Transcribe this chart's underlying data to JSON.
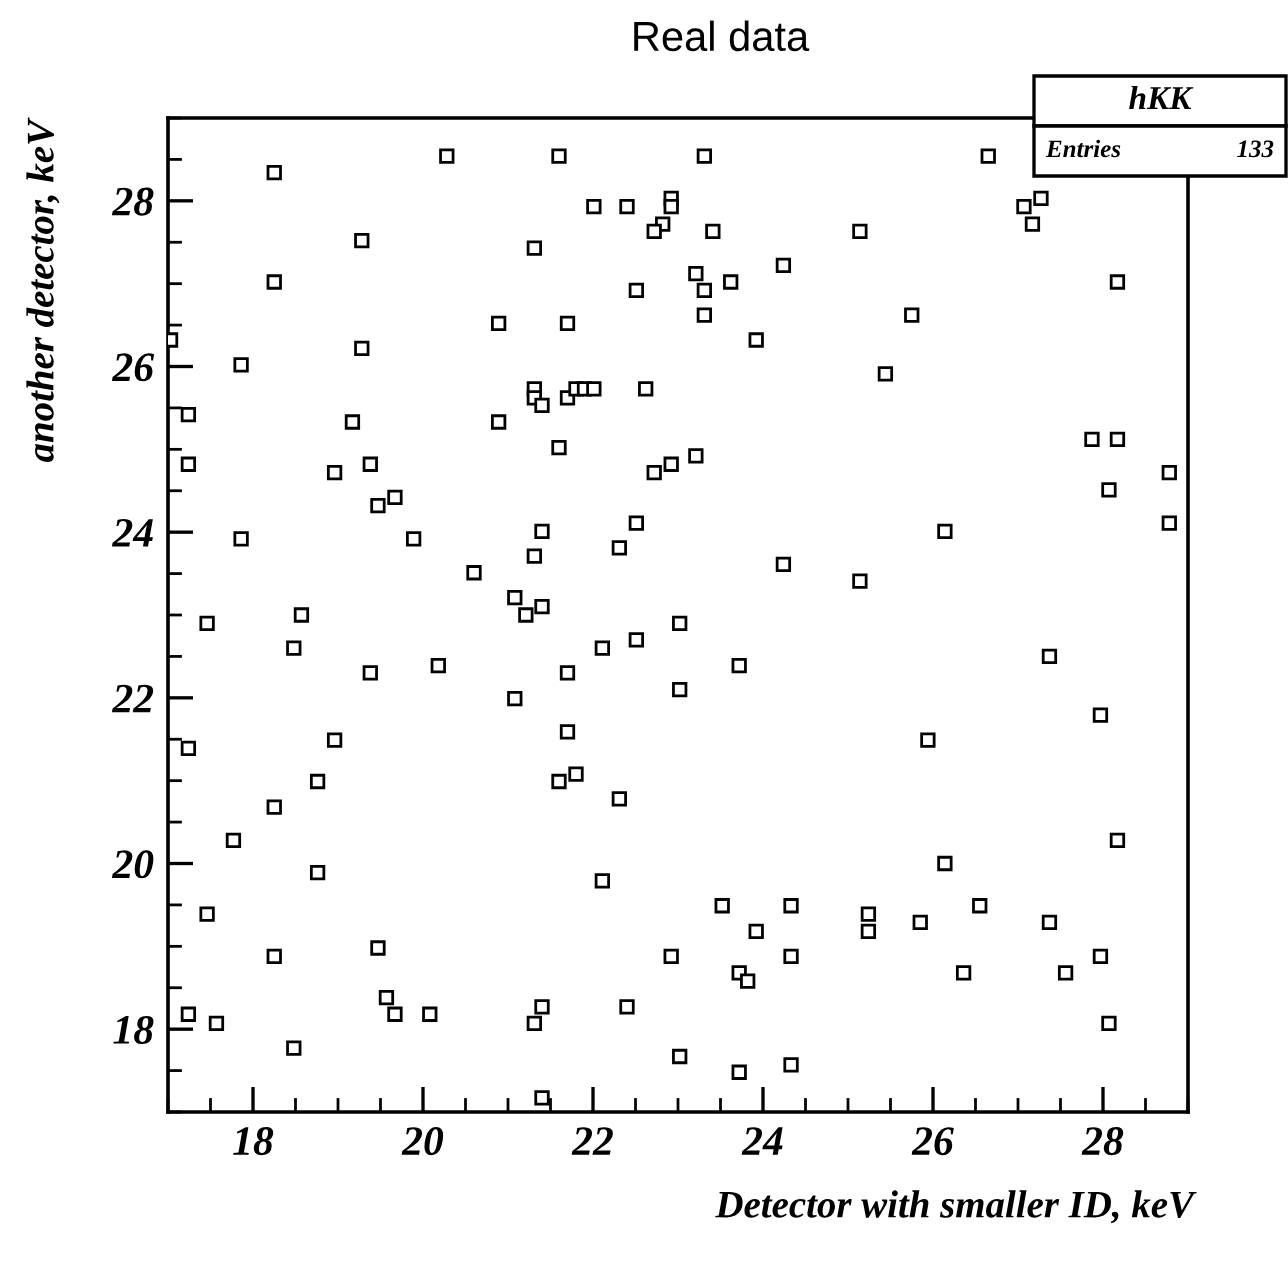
{
  "chart_data": {
    "type": "scatter",
    "title": "Real data",
    "xlabel": "Detector with smaller ID, keV",
    "ylabel": "another detector, keV",
    "annotations": [
      "hKK",
      "Entries",
      "133"
    ],
    "xlim": [
      17,
      29
    ],
    "ylim": [
      17,
      29
    ],
    "xticks": [
      18,
      20,
      22,
      24,
      26,
      28
    ],
    "yticks": [
      18,
      20,
      22,
      24,
      26,
      28
    ],
    "marker": "square",
    "grid": false,
    "legend": false,
    "series": [
      {
        "color": "#000000",
        "x": [
          18.25,
          20.28,
          19.28,
          18.25,
          20.89,
          17.03,
          19.28,
          17.86,
          17.24,
          19.17,
          20.89,
          17.24,
          19.38,
          18.96,
          19.67,
          19.47,
          17.86,
          19.89,
          20.6,
          21.08,
          17.46,
          18.57,
          18.48,
          19.38,
          20.18,
          21.08,
          17.24,
          18.96,
          18.76,
          18.25,
          17.77,
          18.76,
          17.46,
          18.25,
          19.47,
          19.57,
          17.24,
          17.57,
          19.67,
          20.08,
          18.48,
          21.6,
          23.31,
          22.01,
          22.4,
          22.92,
          22.92,
          22.82,
          22.72,
          23.41,
          25.14,
          21.31,
          23.21,
          24.24,
          23.62,
          22.51,
          23.31,
          23.31,
          21.7,
          23.92,
          25.44,
          21.31,
          21.31,
          21.4,
          21.7,
          21.8,
          21.9,
          22.01,
          22.62,
          21.6,
          22.72,
          22.92,
          23.21,
          21.4,
          22.51,
          21.31,
          22.31,
          24.24,
          25.14,
          21.21,
          21.4,
          23.02,
          22.11,
          22.51,
          21.7,
          23.02,
          23.72,
          21.7,
          21.6,
          21.8,
          22.31,
          22.11,
          23.52,
          24.33,
          25.24,
          25.24,
          23.92,
          22.92,
          24.33,
          23.72,
          23.82,
          21.4,
          21.31,
          22.4,
          23.02,
          23.72,
          24.33,
          21.4,
          26.65,
          27.07,
          27.27,
          27.17,
          28.17,
          25.75,
          27.87,
          28.17,
          28.78,
          28.07,
          28.78,
          26.14,
          27.37,
          27.97,
          25.94,
          28.17,
          26.14,
          26.55,
          25.85,
          27.37,
          27.97,
          26.36,
          27.56,
          28.07
        ],
        "values": [
          28.34,
          28.54,
          27.52,
          27.02,
          26.52,
          26.32,
          26.22,
          26.02,
          25.42,
          25.33,
          25.33,
          24.82,
          24.82,
          24.72,
          24.42,
          24.32,
          23.92,
          23.92,
          23.51,
          23.21,
          22.9,
          23.0,
          22.6,
          22.3,
          22.39,
          21.99,
          21.39,
          21.49,
          20.99,
          20.68,
          20.28,
          19.89,
          19.39,
          18.88,
          18.98,
          18.38,
          18.18,
          18.07,
          18.18,
          18.18,
          17.77,
          28.54,
          28.54,
          27.93,
          27.93,
          28.03,
          27.93,
          27.72,
          27.63,
          27.63,
          27.63,
          27.43,
          27.12,
          27.22,
          27.02,
          26.92,
          26.92,
          26.62,
          26.52,
          26.32,
          25.91,
          25.73,
          25.62,
          25.53,
          25.62,
          25.73,
          25.73,
          25.73,
          25.73,
          25.02,
          24.72,
          24.82,
          24.92,
          24.01,
          24.11,
          23.71,
          23.81,
          23.61,
          23.41,
          23.0,
          23.1,
          22.9,
          22.6,
          22.7,
          22.3,
          22.1,
          22.39,
          21.59,
          20.99,
          21.08,
          20.78,
          19.79,
          19.49,
          19.49,
          19.39,
          19.18,
          19.18,
          18.88,
          18.88,
          18.68,
          18.58,
          18.27,
          18.07,
          18.27,
          17.67,
          17.48,
          17.57,
          17.17,
          28.54,
          27.93,
          28.03,
          27.72,
          27.02,
          26.62,
          25.12,
          25.12,
          24.72,
          24.51,
          24.11,
          24.01,
          22.5,
          21.79,
          21.49,
          20.28,
          20.0,
          19.49,
          19.29,
          19.29,
          18.88,
          18.68,
          18.68,
          18.07
        ]
      }
    ]
  }
}
